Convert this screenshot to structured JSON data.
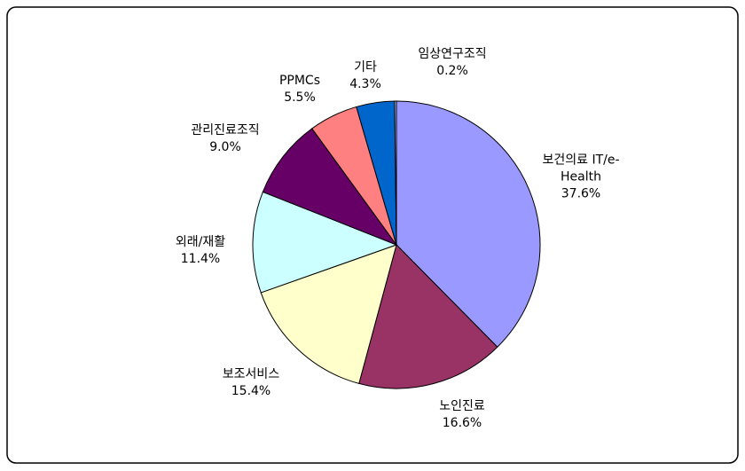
{
  "chart_data": {
    "type": "pie",
    "categories": [
      "보건의료 IT/e-Health",
      "노인진료",
      "보조서비스",
      "외래/재활",
      "관리진료조직",
      "PPMCs",
      "기타",
      "임상연구조직"
    ],
    "values": [
      37.6,
      16.6,
      15.4,
      11.4,
      9.0,
      5.5,
      4.3,
      0.2
    ],
    "value_labels": [
      "37.6%",
      "16.6%",
      "15.4%",
      "11.4%",
      "9.0%",
      "5.5%",
      "4.3%",
      "0.2%"
    ],
    "colors": [
      "#9999ff",
      "#993366",
      "#ffffcc",
      "#ccffff",
      "#660066",
      "#ff8080",
      "#0066cc",
      "#ccccff"
    ]
  }
}
